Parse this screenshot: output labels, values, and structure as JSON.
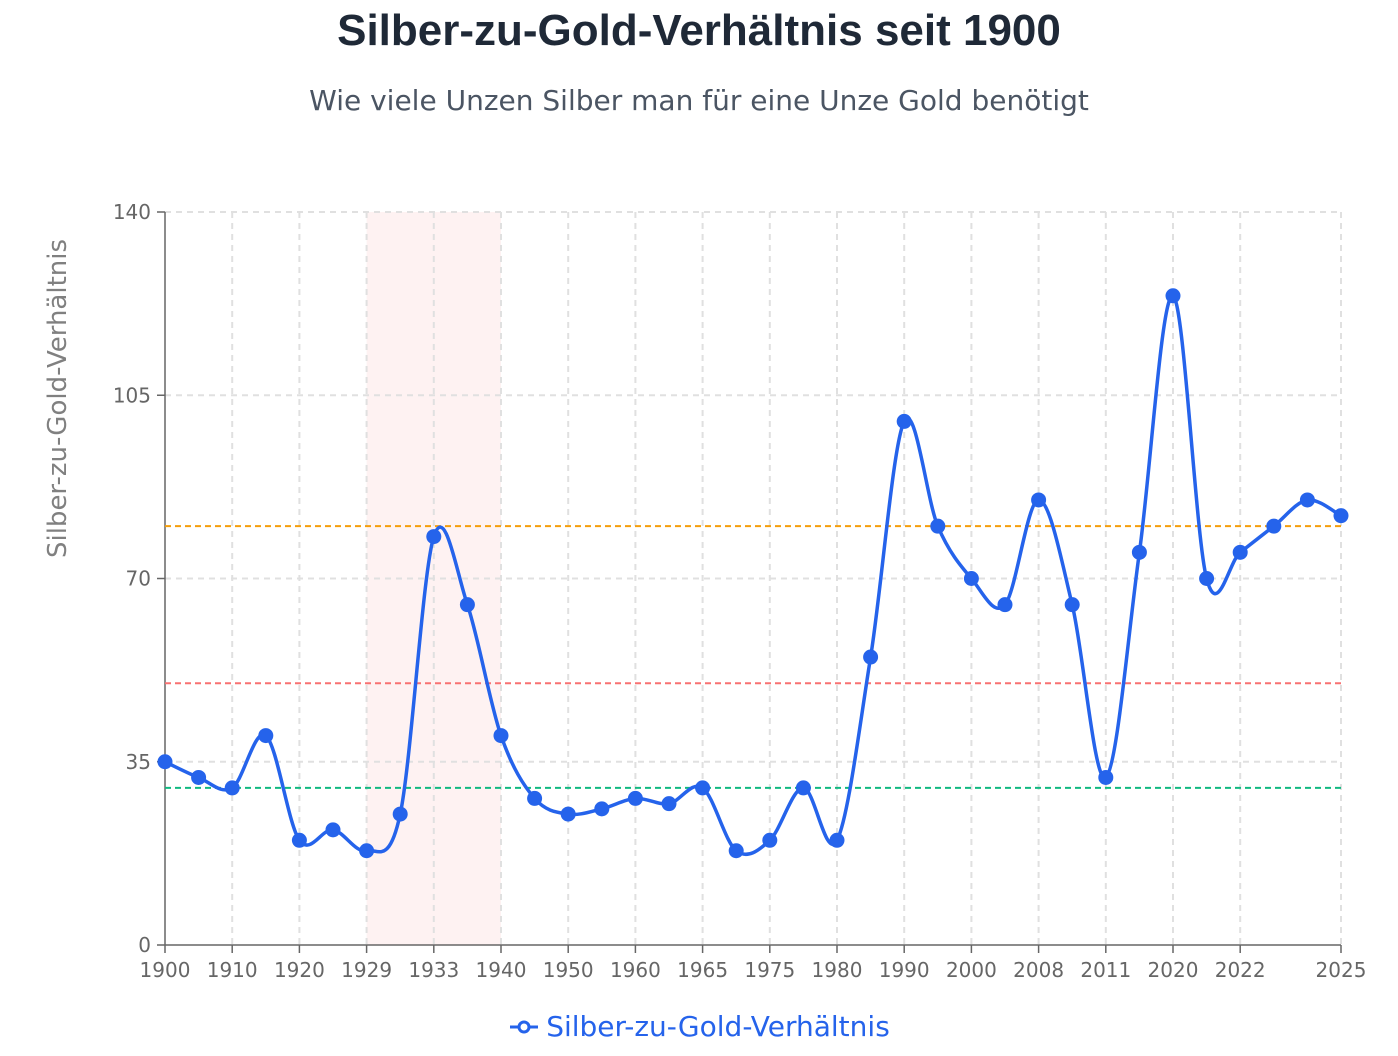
{
  "title": "Silber-zu-Gold-Verhältnis seit 1900",
  "subtitle": "Wie viele Unzen Silber man für eine Unze Gold benötigt",
  "chart_data": {
    "type": "line",
    "title": "Silber-zu-Gold-Verhältnis seit 1900",
    "xlabel": "",
    "ylabel": "Silber-zu-Gold-Verhältnis",
    "ylim": [
      0,
      140
    ],
    "yticks": [
      0,
      35,
      70,
      105,
      140
    ],
    "grid": true,
    "legend_position": "bottom-center",
    "series": [
      {
        "name": "Silber-zu-Gold-Verhältnis",
        "color": "#2563eb",
        "points": [
          {
            "x": 1900,
            "y": 35
          },
          {
            "x": 1905,
            "y": 32
          },
          {
            "x": 1910,
            "y": 30
          },
          {
            "x": 1915,
            "y": 40
          },
          {
            "x": 1920,
            "y": 20
          },
          {
            "x": 1925,
            "y": 22
          },
          {
            "x": 1929,
            "y": 18
          },
          {
            "x": 1931,
            "y": 25
          },
          {
            "x": 1933,
            "y": 78
          },
          {
            "x": 1936,
            "y": 65
          },
          {
            "x": 1940,
            "y": 40
          },
          {
            "x": 1945,
            "y": 28
          },
          {
            "x": 1950,
            "y": 25
          },
          {
            "x": 1955,
            "y": 26
          },
          {
            "x": 1960,
            "y": 28
          },
          {
            "x": 1963,
            "y": 27
          },
          {
            "x": 1965,
            "y": 30
          },
          {
            "x": 1970,
            "y": 18
          },
          {
            "x": 1975,
            "y": 20
          },
          {
            "x": 1978,
            "y": 30
          },
          {
            "x": 1980,
            "y": 20
          },
          {
            "x": 1985,
            "y": 55
          },
          {
            "x": 1990,
            "y": 100
          },
          {
            "x": 1995,
            "y": 80
          },
          {
            "x": 2000,
            "y": 70
          },
          {
            "x": 2005,
            "y": 65
          },
          {
            "x": 2008,
            "y": 85
          },
          {
            "x": 2010,
            "y": 65
          },
          {
            "x": 2011,
            "y": 32
          },
          {
            "x": 2015,
            "y": 75
          },
          {
            "x": 2020,
            "y": 124
          },
          {
            "x": 2021,
            "y": 70
          },
          {
            "x": 2022,
            "y": 75
          },
          {
            "x": 2023,
            "y": 80
          },
          {
            "x": 2024,
            "y": 85
          },
          {
            "x": 2025,
            "y": 82
          }
        ]
      }
    ],
    "x_tick_labels": [
      "1900",
      "1910",
      "1920",
      "1929",
      "1933",
      "1940",
      "1950",
      "1960",
      "1965",
      "1975",
      "1980",
      "1990",
      "2000",
      "2008",
      "2011",
      "2020",
      "2022",
      "2025"
    ],
    "reference_lines": [
      {
        "y": 80,
        "color": "#f59e0b"
      },
      {
        "y": 50,
        "color": "#f87171"
      },
      {
        "y": 30,
        "color": "#10b981"
      }
    ],
    "highlight_range": {
      "from": 1929,
      "to": 1940,
      "color": "#fef2f2"
    }
  }
}
